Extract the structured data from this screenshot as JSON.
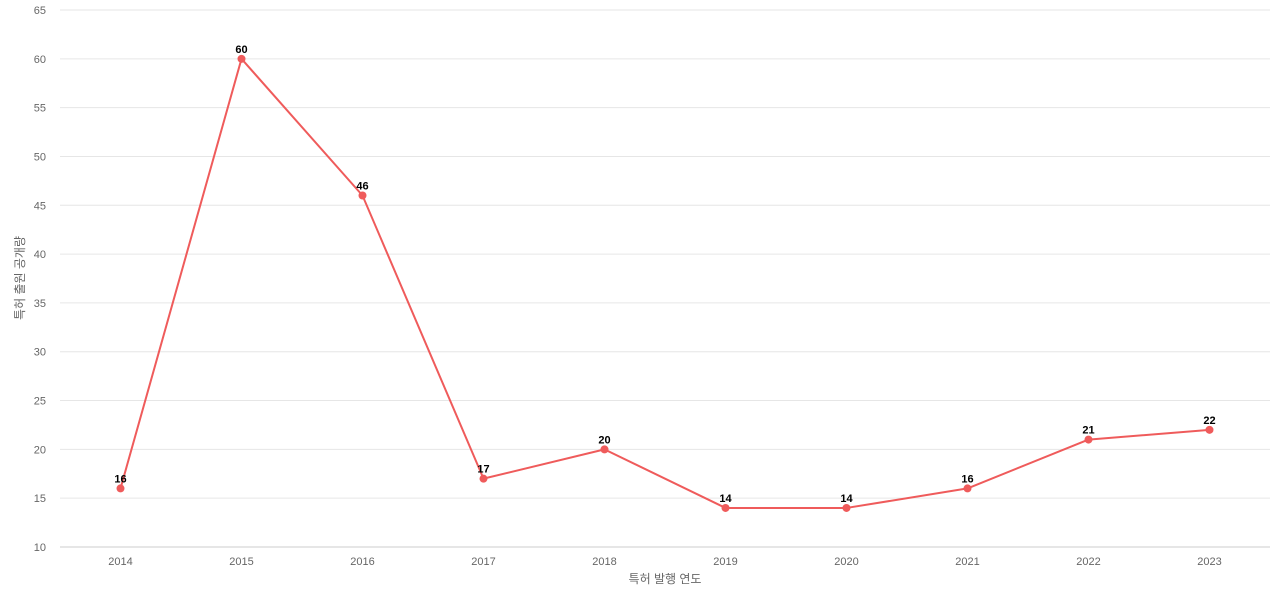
{
  "chart_data": {
    "type": "line",
    "title": "",
    "xlabel": "특허 발행 연도",
    "ylabel": "특허 출원 공개량",
    "x": [
      "2014",
      "2015",
      "2016",
      "2017",
      "2018",
      "2019",
      "2020",
      "2021",
      "2022",
      "2023"
    ],
    "series": [
      {
        "values": [
          16,
          60,
          46,
          17,
          20,
          14,
          14,
          16,
          21,
          22
        ],
        "color": "#ef5b5b"
      }
    ],
    "ylim": [
      10,
      65
    ],
    "yticks": [
      "10",
      "15",
      "20",
      "25",
      "30",
      "35",
      "40",
      "45",
      "50",
      "55",
      "60",
      "65"
    ],
    "grid": true,
    "legend": "none",
    "data_labels": true
  }
}
